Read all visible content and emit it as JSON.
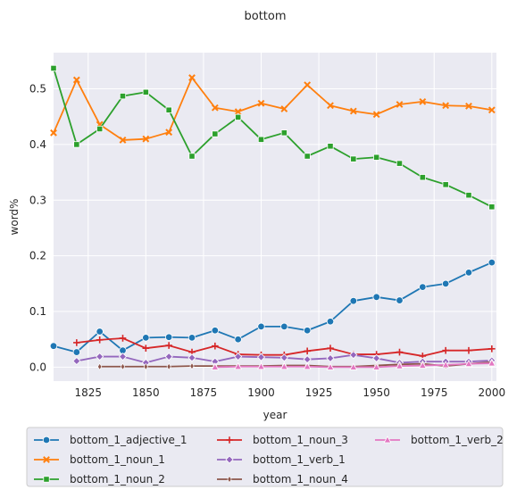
{
  "chart_data": {
    "type": "line",
    "title": "bottom",
    "xlabel": "year",
    "ylabel": "word%",
    "xlim": [
      1810,
      2002
    ],
    "ylim": [
      -0.025,
      0.565
    ],
    "xticks": [
      1825,
      1850,
      1875,
      1900,
      1925,
      1950,
      1975,
      2000
    ],
    "yticks": [
      0.0,
      0.1,
      0.2,
      0.3,
      0.4,
      0.5
    ],
    "ytick_labels": [
      "0.0",
      "0.1",
      "0.2",
      "0.3",
      "0.4",
      "0.5"
    ],
    "grid": true,
    "legend_placement": "bottom",
    "series": [
      {
        "name": "bottom_1_adjective_1",
        "color": "#1f77b4",
        "marker": "circle",
        "x": [
          1810,
          1820,
          1830,
          1840,
          1850,
          1860,
          1870,
          1880,
          1890,
          1900,
          1910,
          1920,
          1930,
          1940,
          1950,
          1960,
          1970,
          1980,
          1990,
          2000
        ],
        "values": [
          0.038,
          0.027,
          0.064,
          0.03,
          0.053,
          0.054,
          0.053,
          0.066,
          0.05,
          0.073,
          0.073,
          0.066,
          0.082,
          0.119,
          0.126,
          0.12,
          0.144,
          0.15,
          0.17,
          0.188
        ]
      },
      {
        "name": "bottom_1_noun_1",
        "color": "#ff7f0e",
        "marker": "x",
        "x": [
          1810,
          1820,
          1830,
          1840,
          1850,
          1860,
          1870,
          1880,
          1890,
          1900,
          1910,
          1920,
          1930,
          1940,
          1950,
          1960,
          1970,
          1980,
          1990,
          2000
        ],
        "values": [
          0.421,
          0.516,
          0.436,
          0.408,
          0.41,
          0.422,
          0.52,
          0.466,
          0.459,
          0.474,
          0.464,
          0.507,
          0.47,
          0.46,
          0.454,
          0.472,
          0.477,
          0.47,
          0.469,
          0.462
        ]
      },
      {
        "name": "bottom_1_noun_2",
        "color": "#2ca02c",
        "marker": "square",
        "x": [
          1810,
          1820,
          1830,
          1840,
          1850,
          1860,
          1870,
          1880,
          1890,
          1900,
          1910,
          1920,
          1930,
          1940,
          1950,
          1960,
          1970,
          1980,
          1990,
          2000
        ],
        "values": [
          0.537,
          0.4,
          0.428,
          0.487,
          0.494,
          0.462,
          0.379,
          0.419,
          0.449,
          0.409,
          0.421,
          0.379,
          0.397,
          0.374,
          0.377,
          0.366,
          0.341,
          0.328,
          0.309,
          0.288
        ]
      },
      {
        "name": "bottom_1_noun_3",
        "color": "#d62728",
        "marker": "plus",
        "x": [
          1820,
          1830,
          1840,
          1850,
          1860,
          1870,
          1880,
          1890,
          1900,
          1910,
          1920,
          1930,
          1940,
          1950,
          1960,
          1970,
          1980,
          1990,
          2000
        ],
        "values": [
          0.044,
          0.049,
          0.052,
          0.034,
          0.039,
          0.027,
          0.038,
          0.023,
          0.022,
          0.022,
          0.029,
          0.034,
          0.023,
          0.023,
          0.027,
          0.02,
          0.03,
          0.03,
          0.033
        ]
      },
      {
        "name": "bottom_1_verb_1",
        "color": "#9467bd",
        "marker": "diamond",
        "x": [
          1820,
          1830,
          1840,
          1850,
          1860,
          1870,
          1880,
          1890,
          1900,
          1910,
          1920,
          1930,
          1940,
          1950,
          1960,
          1970,
          1980,
          1990,
          2000
        ],
        "values": [
          0.011,
          0.019,
          0.019,
          0.008,
          0.019,
          0.017,
          0.01,
          0.019,
          0.018,
          0.017,
          0.014,
          0.016,
          0.022,
          0.016,
          0.008,
          0.01,
          0.01,
          0.01,
          0.012
        ]
      },
      {
        "name": "bottom_1_noun_4",
        "color": "#8c564b",
        "marker": "thin-diamond",
        "x": [
          1830,
          1840,
          1850,
          1860,
          1870,
          1880,
          1890,
          1900,
          1910,
          1920,
          1930,
          1940,
          1950,
          1960,
          1970,
          1980,
          1990,
          2000
        ],
        "values": [
          0.001,
          0.001,
          0.001,
          0.001,
          0.002,
          0.002,
          0.002,
          0.002,
          0.003,
          0.003,
          0.001,
          0.001,
          0.003,
          0.005,
          0.006,
          0.002,
          0.006,
          0.009
        ]
      },
      {
        "name": "bottom_1_verb_2",
        "color": "#e377c2",
        "marker": "triangle",
        "x": [
          1880,
          1890,
          1900,
          1910,
          1920,
          1930,
          1940,
          1950,
          1960,
          1970,
          1980,
          1990,
          2000
        ],
        "values": [
          0.0,
          0.001,
          0.001,
          0.001,
          0.001,
          0.0,
          0.0,
          0.0,
          0.002,
          0.003,
          0.004,
          0.006,
          0.007
        ]
      }
    ]
  }
}
